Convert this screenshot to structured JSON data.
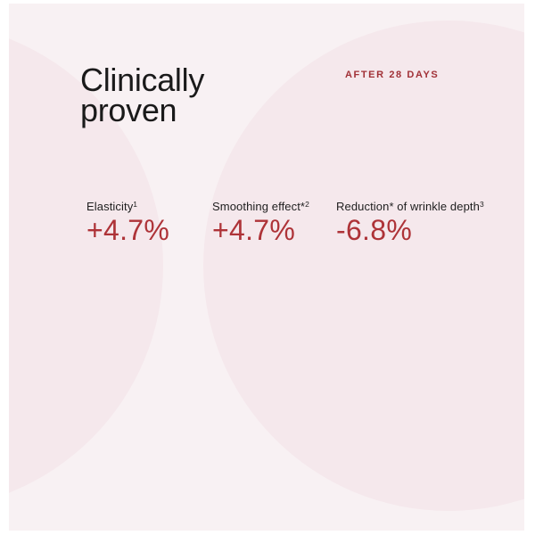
{
  "colors": {
    "page_margin": "#ffffff",
    "canvas_background": "#f8f1f3",
    "circle_fill": "#f5e8ec",
    "heading_text": "#1a1a1a",
    "accent_red": "#a13137",
    "value_red": "#ae3338",
    "label_text": "#1e1e1e"
  },
  "header": {
    "title_line1": "Clinically",
    "title_line2": "proven",
    "eyebrow": "AFTER 28 DAYS"
  },
  "stats": [
    {
      "label": "Elasticity",
      "superscript": "1",
      "value": "+4.7%"
    },
    {
      "label": "Smoothing effect*",
      "superscript": "2",
      "value": "+4.7%"
    },
    {
      "label": "Reduction* of wrinkle depth",
      "superscript": "3",
      "value": "-6.8%"
    }
  ]
}
